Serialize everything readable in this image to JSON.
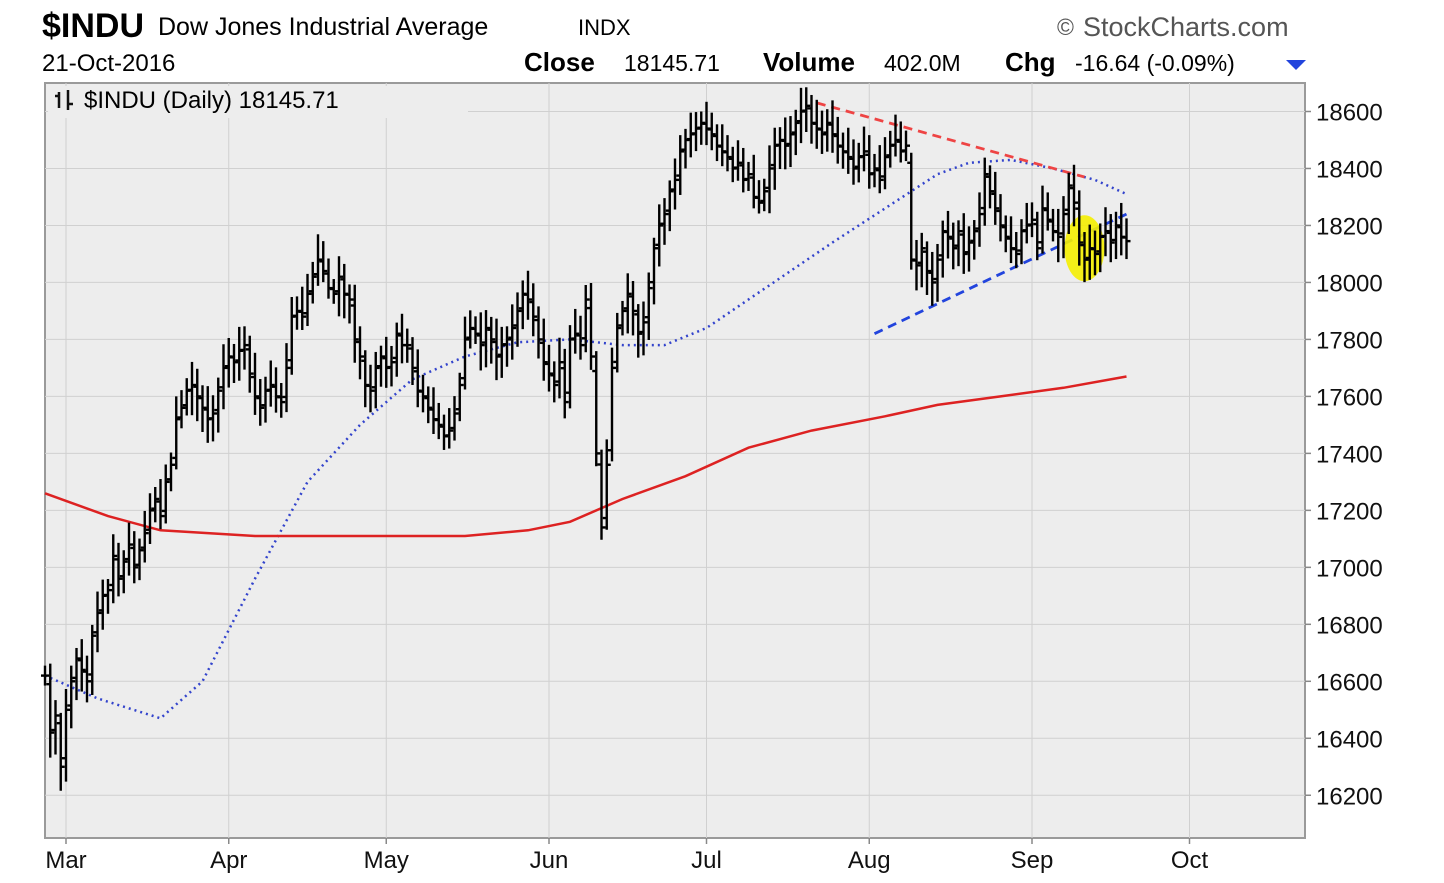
{
  "header": {
    "symbol": "$INDU",
    "name": "Dow Jones Industrial Average",
    "exchange": "INDX",
    "date": "21-Oct-2016",
    "brand": "StockCharts.com",
    "brand_symbol": "©",
    "close_label": "Close",
    "close_value": "18145.71",
    "volume_label": "Volume",
    "volume_value": "402.0M",
    "chg_label": "Chg",
    "chg_value": "-16.64 (-0.09%)",
    "chg_arrow_color": "#2244dd"
  },
  "legend": {
    "icon": "candle-toggle-icon",
    "text": "$INDU (Daily) 18145.71"
  },
  "chart_data": {
    "type": "ohlc",
    "x_ticks": [
      {
        "label": "Mar",
        "day": 4
      },
      {
        "label": "Apr",
        "day": 35
      },
      {
        "label": "May",
        "day": 65
      },
      {
        "label": "Jun",
        "day": 96
      },
      {
        "label": "Jul",
        "day": 126
      },
      {
        "label": "Aug",
        "day": 157
      },
      {
        "label": "Sep",
        "day": 188
      },
      {
        "label": "Oct",
        "day": 218
      }
    ],
    "xlim": [
      0,
      240
    ],
    "ylim": [
      16050,
      18700
    ],
    "y_ticks": [
      16200,
      16400,
      16600,
      16800,
      17000,
      17200,
      17400,
      17600,
      17800,
      18000,
      18200,
      18400,
      18600
    ],
    "grid": true,
    "series": [
      {
        "style": "ohlc-bars",
        "color": "#000000",
        "points": [
          [
            0,
            16620
          ],
          [
            1,
            16420
          ],
          [
            2,
            16480
          ],
          [
            3,
            16300
          ],
          [
            4,
            16500
          ],
          [
            5,
            16600
          ],
          [
            6,
            16680
          ],
          [
            7,
            16640
          ],
          [
            8,
            16600
          ],
          [
            9,
            16760
          ],
          [
            10,
            16840
          ],
          [
            11,
            16900
          ],
          [
            12,
            16920
          ],
          [
            13,
            17040
          ],
          [
            14,
            16960
          ],
          [
            15,
            17020
          ],
          [
            16,
            17080
          ],
          [
            17,
            17000
          ],
          [
            18,
            17060
          ],
          [
            19,
            17120
          ],
          [
            20,
            17200
          ],
          [
            21,
            17240
          ],
          [
            22,
            17180
          ],
          [
            23,
            17300
          ],
          [
            24,
            17360
          ],
          [
            25,
            17520
          ],
          [
            26,
            17560
          ],
          [
            27,
            17620
          ],
          [
            28,
            17640
          ],
          [
            29,
            17600
          ],
          [
            30,
            17560
          ],
          [
            31,
            17520
          ],
          [
            32,
            17540
          ],
          [
            33,
            17620
          ],
          [
            34,
            17700
          ],
          [
            35,
            17740
          ],
          [
            36,
            17720
          ],
          [
            37,
            17760
          ],
          [
            38,
            17780
          ],
          [
            39,
            17680
          ],
          [
            40,
            17600
          ],
          [
            41,
            17560
          ],
          [
            42,
            17620
          ],
          [
            43,
            17640
          ],
          [
            44,
            17600
          ],
          [
            45,
            17580
          ],
          [
            46,
            17700
          ],
          [
            47,
            17880
          ],
          [
            48,
            17900
          ],
          [
            49,
            17880
          ],
          [
            50,
            17960
          ],
          [
            51,
            18020
          ],
          [
            52,
            18080
          ],
          [
            53,
            18040
          ],
          [
            54,
            17980
          ],
          [
            55,
            17960
          ],
          [
            56,
            18020
          ],
          [
            57,
            17960
          ],
          [
            58,
            17940
          ],
          [
            59,
            17800
          ],
          [
            60,
            17740
          ],
          [
            61,
            17640
          ],
          [
            62,
            17620
          ],
          [
            63,
            17700
          ],
          [
            64,
            17740
          ],
          [
            65,
            17700
          ],
          [
            66,
            17720
          ],
          [
            67,
            17820
          ],
          [
            68,
            17780
          ],
          [
            69,
            17780
          ],
          [
            70,
            17700
          ],
          [
            71,
            17620
          ],
          [
            72,
            17600
          ],
          [
            73,
            17560
          ],
          [
            74,
            17520
          ],
          [
            75,
            17500
          ],
          [
            76,
            17460
          ],
          [
            77,
            17480
          ],
          [
            78,
            17540
          ],
          [
            79,
            17640
          ],
          [
            80,
            17800
          ],
          [
            81,
            17840
          ],
          [
            82,
            17820
          ],
          [
            83,
            17780
          ],
          [
            84,
            17840
          ],
          [
            85,
            17800
          ],
          [
            86,
            17740
          ],
          [
            87,
            17780
          ],
          [
            88,
            17800
          ],
          [
            89,
            17840
          ],
          [
            90,
            17900
          ],
          [
            91,
            17960
          ],
          [
            92,
            17940
          ],
          [
            93,
            17880
          ],
          [
            94,
            17800
          ],
          [
            95,
            17720
          ],
          [
            96,
            17680
          ],
          [
            97,
            17640
          ],
          [
            98,
            17720
          ],
          [
            99,
            17580
          ],
          [
            100,
            17800
          ],
          [
            101,
            17820
          ],
          [
            102,
            17780
          ],
          [
            103,
            17940
          ],
          [
            104,
            17740
          ],
          [
            105,
            17400
          ],
          [
            106,
            17140
          ],
          [
            107,
            17360
          ],
          [
            108,
            17700
          ],
          [
            109,
            17840
          ],
          [
            110,
            17900
          ],
          [
            111,
            17960
          ],
          [
            112,
            17900
          ],
          [
            113,
            17820
          ],
          [
            114,
            17860
          ],
          [
            115,
            17980
          ],
          [
            116,
            18120
          ],
          [
            117,
            18200
          ],
          [
            118,
            18240
          ],
          [
            119,
            18320
          ],
          [
            120,
            18360
          ],
          [
            121,
            18460
          ],
          [
            122,
            18500
          ],
          [
            123,
            18520
          ],
          [
            124,
            18540
          ],
          [
            125,
            18560
          ],
          [
            126,
            18540
          ],
          [
            127,
            18520
          ],
          [
            128,
            18480
          ],
          [
            129,
            18460
          ],
          [
            130,
            18440
          ],
          [
            131,
            18400
          ],
          [
            132,
            18420
          ],
          [
            133,
            18360
          ],
          [
            134,
            18380
          ],
          [
            135,
            18300
          ],
          [
            136,
            18280
          ],
          [
            137,
            18320
          ],
          [
            138,
            18400
          ],
          [
            139,
            18480
          ],
          [
            140,
            18500
          ],
          [
            141,
            18480
          ],
          [
            142,
            18520
          ],
          [
            143,
            18560
          ],
          [
            144,
            18600
          ],
          [
            145,
            18620
          ],
          [
            146,
            18560
          ],
          [
            147,
            18540
          ],
          [
            148,
            18520
          ],
          [
            149,
            18560
          ],
          [
            150,
            18520
          ],
          [
            151,
            18480
          ],
          [
            152,
            18460
          ],
          [
            153,
            18440
          ],
          [
            154,
            18400
          ],
          [
            155,
            18440
          ],
          [
            156,
            18460
          ],
          [
            157,
            18380
          ],
          [
            158,
            18400
          ],
          [
            159,
            18360
          ],
          [
            160,
            18440
          ],
          [
            161,
            18480
          ],
          [
            162,
            18500
          ],
          [
            163,
            18460
          ],
          [
            164,
            18480
          ],
          [
            165,
            18080
          ],
          [
            166,
            18060
          ],
          [
            167,
            18120
          ],
          [
            168,
            18040
          ],
          [
            169,
            18000
          ],
          [
            170,
            18080
          ],
          [
            171,
            18180
          ],
          [
            172,
            18160
          ],
          [
            173,
            18120
          ],
          [
            174,
            18180
          ],
          [
            175,
            18100
          ],
          [
            176,
            18140
          ],
          [
            177,
            18180
          ],
          [
            178,
            18240
          ],
          [
            179,
            18380
          ],
          [
            180,
            18320
          ],
          [
            181,
            18260
          ],
          [
            182,
            18200
          ],
          [
            183,
            18160
          ],
          [
            184,
            18120
          ],
          [
            185,
            18100
          ],
          [
            186,
            18180
          ],
          [
            187,
            18200
          ],
          [
            188,
            18220
          ],
          [
            189,
            18120
          ],
          [
            190,
            18260
          ],
          [
            191,
            18220
          ],
          [
            192,
            18180
          ],
          [
            193,
            18160
          ],
          [
            194,
            18240
          ],
          [
            195,
            18340
          ],
          [
            196,
            18280
          ],
          [
            197,
            18140
          ],
          [
            198,
            18080
          ],
          [
            199,
            18120
          ],
          [
            200,
            18100
          ],
          [
            201,
            18160
          ],
          [
            202,
            18180
          ],
          [
            203,
            18140
          ],
          [
            204,
            18200
          ],
          [
            205,
            18160
          ],
          [
            206,
            18145
          ]
        ]
      },
      {
        "style": "dotted-line",
        "color": "#3344cc",
        "points": [
          [
            0,
            16620
          ],
          [
            10,
            16540
          ],
          [
            22,
            16470
          ],
          [
            30,
            16600
          ],
          [
            40,
            16960
          ],
          [
            50,
            17300
          ],
          [
            60,
            17500
          ],
          [
            70,
            17660
          ],
          [
            80,
            17740
          ],
          [
            90,
            17790
          ],
          [
            100,
            17800
          ],
          [
            110,
            17780
          ],
          [
            118,
            17780
          ],
          [
            126,
            17840
          ],
          [
            134,
            17940
          ],
          [
            142,
            18040
          ],
          [
            150,
            18140
          ],
          [
            160,
            18260
          ],
          [
            170,
            18380
          ],
          [
            176,
            18420
          ],
          [
            184,
            18430
          ],
          [
            192,
            18400
          ],
          [
            200,
            18360
          ],
          [
            206,
            18310
          ]
        ]
      },
      {
        "style": "solid-line",
        "color": "#dd2222",
        "points": [
          [
            0,
            17260
          ],
          [
            12,
            17180
          ],
          [
            22,
            17130
          ],
          [
            40,
            17110
          ],
          [
            60,
            17110
          ],
          [
            80,
            17110
          ],
          [
            92,
            17130
          ],
          [
            100,
            17160
          ],
          [
            110,
            17240
          ],
          [
            122,
            17320
          ],
          [
            134,
            17420
          ],
          [
            146,
            17480
          ],
          [
            160,
            17530
          ],
          [
            170,
            17570
          ],
          [
            182,
            17600
          ],
          [
            194,
            17630
          ],
          [
            206,
            17670
          ]
        ]
      },
      {
        "style": "dashed-line",
        "color": "#ee4444",
        "points": [
          [
            147,
            18630
          ],
          [
            198,
            18370
          ]
        ]
      },
      {
        "style": "dashed-line",
        "color": "#2244dd",
        "points": [
          [
            158,
            17820
          ],
          [
            206,
            18240
          ]
        ]
      }
    ],
    "annotations": [
      {
        "type": "highlight-ellipse",
        "color": "#f4ee00",
        "day": 198,
        "value": 18120
      }
    ]
  }
}
